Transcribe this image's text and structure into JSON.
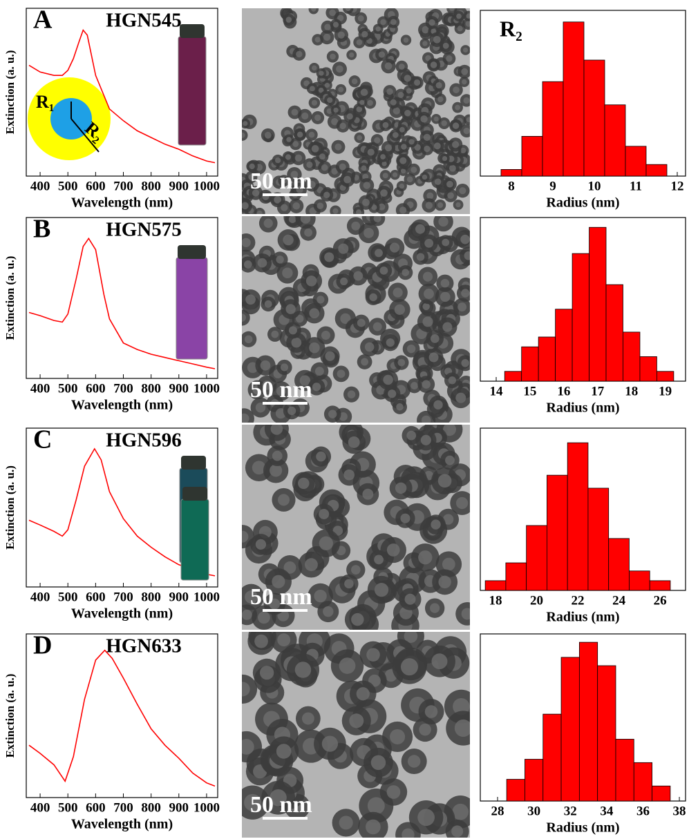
{
  "chart_data": [
    {
      "type": "line",
      "panel": "A",
      "title": "HGN545",
      "xlabel": "Wavelength (nm)",
      "ylabel": "Extinction (a. u.)",
      "color": "#ff0000",
      "x": [
        360,
        400,
        450,
        480,
        500,
        520,
        540,
        555,
        570,
        600,
        650,
        700,
        750,
        800,
        850,
        900,
        950,
        1000,
        1030
      ],
      "values": [
        0.66,
        0.62,
        0.6,
        0.6,
        0.63,
        0.7,
        0.8,
        0.87,
        0.84,
        0.6,
        0.4,
        0.33,
        0.27,
        0.23,
        0.19,
        0.16,
        0.12,
        0.09,
        0.08
      ],
      "xlim": [
        350,
        1040
      ],
      "ylim": [
        0,
        1
      ],
      "xticks": [
        400,
        500,
        600,
        700,
        800,
        900,
        1000
      ],
      "annotations": [
        "R₁",
        "R₂"
      ]
    },
    {
      "type": "histogram",
      "label": "R₂",
      "xlabel": "Radius (nm)",
      "color": "#ff0000",
      "bins": [
        7.75,
        8.25,
        8.75,
        9.25,
        9.75,
        10.25,
        10.75,
        11.25,
        11.75
      ],
      "values": [
        4,
        24,
        57,
        93,
        70,
        43,
        18,
        7
      ],
      "xlim": [
        7.25,
        12.2
      ],
      "ylim": [
        0,
        100
      ],
      "xticks": [
        8,
        9,
        10,
        11,
        12
      ]
    },
    {
      "type": "line",
      "panel": "B",
      "title": "HGN575",
      "xlabel": "Wavelength (nm)",
      "ylabel": "Extinction (a. u.)",
      "color": "#ff0000",
      "x": [
        360,
        400,
        450,
        480,
        500,
        530,
        555,
        575,
        600,
        630,
        650,
        700,
        750,
        800,
        850,
        900,
        950,
        1000,
        1030
      ],
      "values": [
        0.41,
        0.39,
        0.36,
        0.35,
        0.4,
        0.62,
        0.82,
        0.87,
        0.8,
        0.52,
        0.37,
        0.22,
        0.18,
        0.15,
        0.13,
        0.11,
        0.09,
        0.07,
        0.06
      ],
      "xlim": [
        350,
        1040
      ],
      "ylim": [
        0,
        1
      ],
      "xticks": [
        400,
        500,
        600,
        700,
        800,
        900,
        1000
      ]
    },
    {
      "type": "histogram",
      "xlabel": "Radius (nm)",
      "color": "#ff0000",
      "bins": [
        14.25,
        14.75,
        15.25,
        15.75,
        16.25,
        16.75,
        17.25,
        17.75,
        18.25,
        18.75,
        19.25
      ],
      "values": [
        6,
        21,
        27,
        44,
        78,
        94,
        59,
        30,
        15,
        6
      ],
      "xlim": [
        13.53,
        19.6
      ],
      "ylim": [
        0,
        100
      ],
      "xticks": [
        14,
        15,
        16,
        17,
        18,
        19
      ]
    },
    {
      "type": "line",
      "panel": "C",
      "title": "HGN596",
      "xlabel": "Wavelength (nm)",
      "ylabel": "Extinction (a. u.)",
      "color": "#ff0000",
      "x": [
        360,
        400,
        450,
        480,
        500,
        530,
        560,
        596,
        620,
        650,
        700,
        750,
        800,
        850,
        900,
        950,
        1000,
        1030
      ],
      "values": [
        0.42,
        0.39,
        0.35,
        0.32,
        0.36,
        0.55,
        0.76,
        0.87,
        0.8,
        0.6,
        0.43,
        0.32,
        0.25,
        0.19,
        0.14,
        0.11,
        0.08,
        0.07
      ],
      "xlim": [
        350,
        1040
      ],
      "ylim": [
        0,
        1
      ],
      "xticks": [
        400,
        500,
        600,
        700,
        800,
        900,
        1000
      ]
    },
    {
      "type": "histogram",
      "xlabel": "Radius (nm)",
      "color": "#ff0000",
      "bins": [
        17.5,
        18.5,
        19.5,
        20.5,
        21.5,
        22.5,
        23.5,
        24.5,
        25.5,
        26.5
      ],
      "values": [
        6,
        17,
        40,
        71,
        91,
        63,
        32,
        12,
        6
      ],
      "xlim": [
        17.26,
        27.24
      ],
      "ylim": [
        0,
        100
      ],
      "xticks": [
        18,
        20,
        22,
        24,
        26
      ]
    },
    {
      "type": "line",
      "panel": "D",
      "title": "HGN633",
      "xlabel": "Wavelength (nm)",
      "ylabel": "Extinction (a. u.)",
      "color": "#ff0000",
      "x": [
        360,
        400,
        450,
        490,
        520,
        560,
        600,
        633,
        660,
        700,
        750,
        800,
        850,
        900,
        950,
        1000,
        1030
      ],
      "values": [
        0.32,
        0.27,
        0.2,
        0.1,
        0.25,
        0.6,
        0.84,
        0.9,
        0.85,
        0.73,
        0.57,
        0.42,
        0.32,
        0.24,
        0.15,
        0.09,
        0.07
      ],
      "xlim": [
        350,
        1040
      ],
      "ylim": [
        0,
        1
      ],
      "xticks": [
        400,
        500,
        600,
        700,
        800,
        900,
        1000
      ]
    },
    {
      "type": "histogram",
      "xlabel": "Radius (nm)",
      "color": "#ff0000",
      "bins": [
        28.5,
        29.5,
        30.5,
        31.5,
        32.5,
        33.5,
        34.5,
        35.5,
        36.5,
        37.5
      ],
      "values": [
        13,
        25,
        52,
        86,
        95,
        81,
        37,
        23,
        9
      ],
      "xlim": [
        27.05,
        38.34
      ],
      "ylim": [
        0,
        100
      ],
      "xticks": [
        28,
        30,
        32,
        34,
        36,
        38
      ]
    }
  ],
  "images": [
    {
      "scale_bar": "50 nm"
    },
    {
      "scale_bar": "50 nm"
    },
    {
      "scale_bar": "50 nm"
    },
    {
      "scale_bar": "50 nm"
    }
  ]
}
